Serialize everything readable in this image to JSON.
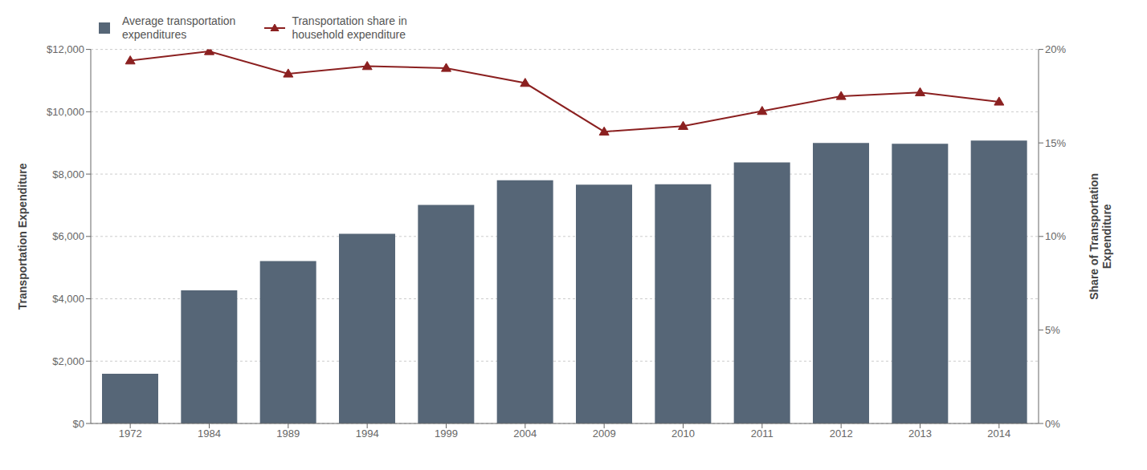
{
  "chart_data": {
    "type": "bar",
    "categories": [
      "1972",
      "1984",
      "1989",
      "1994",
      "1999",
      "2004",
      "2009",
      "2010",
      "2011",
      "2012",
      "2013",
      "2014"
    ],
    "series": [
      {
        "name": "Average transportation\nexpenditures",
        "type": "bar",
        "color": "#566677",
        "values": [
          1597,
          4274,
          5208,
          6083,
          7011,
          7801,
          7658,
          7672,
          8374,
          9000,
          8973,
          9073
        ]
      },
      {
        "name": "Transportation share in\nhousehold expenditure",
        "type": "line",
        "color": "#8b2020",
        "marker": "triangle",
        "axis": "y2",
        "values": [
          0.194,
          0.199,
          0.187,
          0.191,
          0.19,
          0.182,
          0.156,
          0.159,
          0.167,
          0.175,
          0.177,
          0.172
        ]
      }
    ],
    "ylabel": "Transportation Expenditure",
    "y2label": "Share of Transportation\nExpenditure",
    "ylim": [
      0,
      12000
    ],
    "yticks": [
      {
        "value": 0,
        "label": "$0"
      },
      {
        "value": 2000,
        "label": "$2,000"
      },
      {
        "value": 4000,
        "label": "$4,000"
      },
      {
        "value": 6000,
        "label": "$6,000"
      },
      {
        "value": 8000,
        "label": "$8,000"
      },
      {
        "value": 10000,
        "label": "$10,000"
      },
      {
        "value": 12000,
        "label": "$12,000"
      }
    ],
    "y2lim": [
      0,
      0.2
    ],
    "y2ticks": [
      {
        "value": 0.0,
        "label": "0%"
      },
      {
        "value": 0.05,
        "label": "5%"
      },
      {
        "value": 0.1,
        "label": "10%"
      },
      {
        "value": 0.15,
        "label": "15%"
      },
      {
        "value": 0.2,
        "label": "20%"
      }
    ],
    "grid": true,
    "legend": "upper left"
  }
}
